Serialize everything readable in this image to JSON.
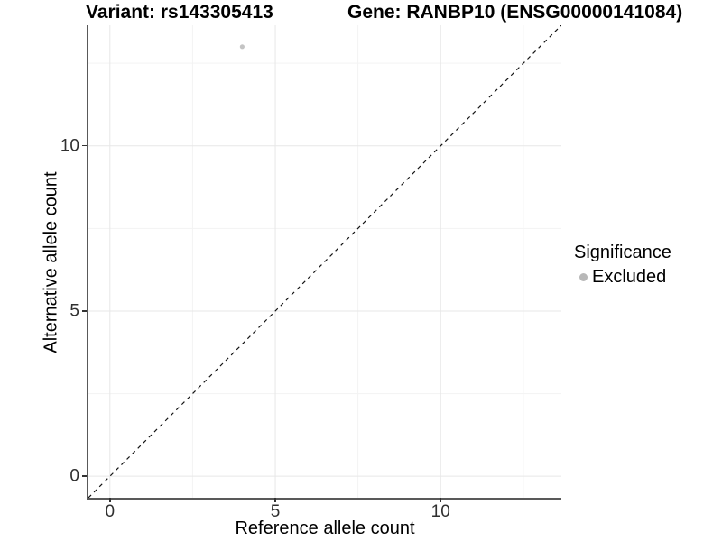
{
  "chart_data": {
    "type": "scatter",
    "title_left": "Variant: rs143305413",
    "title_right": "Gene: RANBP10 (ENSG00000141084)",
    "xlabel": "Reference allele count",
    "ylabel": "Alternative allele count",
    "xlim": [
      -0.65,
      13.65
    ],
    "ylim": [
      -0.65,
      13.65
    ],
    "x_major_ticks": [
      0,
      5,
      10
    ],
    "y_major_ticks": [
      0,
      5,
      10
    ],
    "x_minor_ticks": [
      2.5,
      7.5,
      12.5
    ],
    "y_minor_ticks": [
      2.5,
      7.5,
      12.5
    ],
    "grid": {
      "on": true,
      "major_color": "#e7e7e7",
      "minor_color": "#f3f3f3",
      "legend_position": "right"
    },
    "identity_line": {
      "style": "dashed",
      "slope": 1,
      "intercept": 0,
      "color": "#141414"
    },
    "series": [
      {
        "name": "Excluded",
        "color": "#c4c4c4",
        "points": [
          {
            "x": 4,
            "y": 13
          }
        ]
      }
    ],
    "legend": {
      "title": "Significance",
      "items": [
        {
          "label": "Excluded",
          "color": "#b8b8b8"
        }
      ]
    }
  },
  "colors": {
    "axis_line": "#595959",
    "tick_mark": "#333333",
    "tick_label": "#303030",
    "background": "#ffffff"
  }
}
